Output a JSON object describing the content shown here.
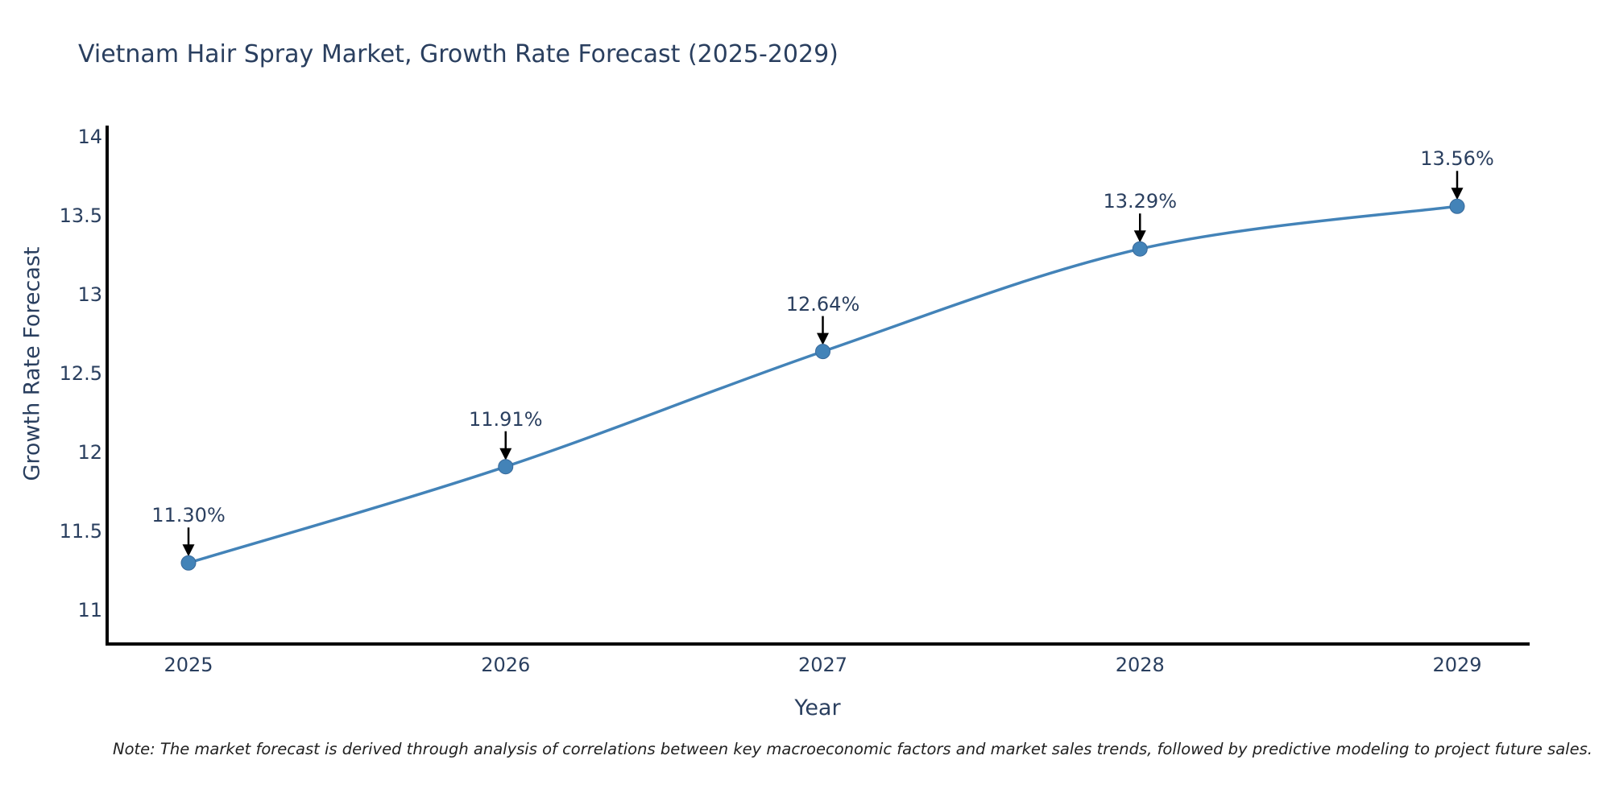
{
  "chart_data": {
    "type": "line",
    "title": "Vietnam Hair Spray Market, Growth Rate Forecast (2025-2029)",
    "xlabel": "Year",
    "ylabel": "Growth Rate Forecast",
    "x": [
      2025,
      2026,
      2027,
      2028,
      2029
    ],
    "series": [
      {
        "name": "Growth Rate Forecast",
        "values": [
          11.3,
          11.91,
          12.64,
          13.29,
          13.56
        ],
        "point_labels": [
          "11.30%",
          "11.91%",
          "12.64%",
          "13.29%",
          "13.56%"
        ]
      }
    ],
    "xtick_labels": [
      "2025",
      "2026",
      "2027",
      "2028",
      "2029"
    ],
    "ytick_values": [
      11,
      11.5,
      12,
      12.5,
      13,
      13.5,
      14
    ],
    "ytick_labels": [
      "11",
      "11.5",
      "12",
      "12.5",
      "13",
      "13.5",
      "14"
    ],
    "ylim": [
      10.786,
      14.07
    ],
    "grid": false,
    "legend": "none",
    "line_shape": "spline",
    "colors": {
      "line": "#4383b8",
      "marker": "#4383b8",
      "marker_edge": "#38699a",
      "axis": "#000000",
      "text": "#2a3f5f",
      "annotation_arrow": "#000000",
      "background": "#ffffff"
    }
  },
  "footnote": "Note: The market forecast is derived through analysis of correlations between key macroeconomic factors and market sales trends, followed by predictive modeling to project future sales."
}
